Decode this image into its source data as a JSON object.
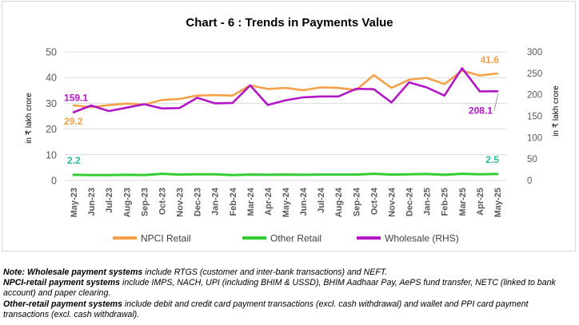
{
  "colors": {
    "npci_retail": "#f5a04a",
    "other_retail": "#33cc33",
    "wholesale": "#b316c6",
    "grid": "#d9d9d9",
    "axis_text": "#595959",
    "label_orange": "#f5a04a",
    "label_green": "#2eb8a0",
    "label_purple": "#b316c6"
  },
  "chart_data": {
    "type": "line",
    "title": "Chart - 6 : Trends in Payments Value",
    "ylabel_left": "in ₹ lakh crore",
    "ylabel_right": "in ₹ lakh crore",
    "ylim_left": [
      0,
      50
    ],
    "ylim_right": [
      0,
      300
    ],
    "yticks_left": [
      "0",
      "10",
      "20",
      "30",
      "40",
      "50"
    ],
    "yticks_right": [
      "0",
      "50",
      "100",
      "150",
      "200",
      "250",
      "300"
    ],
    "grid": true,
    "legend_position": "bottom",
    "categories": [
      "May-23",
      "Jun-23",
      "Jul-23",
      "Aug-23",
      "Sep-23",
      "Oct-23",
      "Nov-23",
      "Dec-23",
      "Jan-24",
      "Feb-24",
      "Mar-24",
      "Apr-24",
      "May-24",
      "Jun-24",
      "Jul-24",
      "Aug-24",
      "Sep-24",
      "Oct-24",
      "Nov-24",
      "Dec-24",
      "Jan-25",
      "Feb-25",
      "Mar-25",
      "Apr-25",
      "May-25"
    ],
    "series": [
      {
        "name": "NPCI Retail",
        "axis": "left",
        "values": [
          29.2,
          28.5,
          29.3,
          29.9,
          29.5,
          31.3,
          31.7,
          33.0,
          33.2,
          33.0,
          37.0,
          35.6,
          36.0,
          35.1,
          36.2,
          36.0,
          35.2,
          41.0,
          36.0,
          39.2,
          39.9,
          37.5,
          42.7,
          40.8,
          41.6
        ]
      },
      {
        "name": "Other Retail",
        "axis": "left",
        "values": [
          2.2,
          2.1,
          2.1,
          2.2,
          2.1,
          2.6,
          2.3,
          2.4,
          2.4,
          2.1,
          2.3,
          2.2,
          2.3,
          2.2,
          2.3,
          2.3,
          2.3,
          2.6,
          2.3,
          2.4,
          2.5,
          2.2,
          2.6,
          2.4,
          2.5
        ]
      },
      {
        "name": "Wholesale (RHS)",
        "axis": "right",
        "values": [
          159.1,
          175.0,
          162.0,
          170.0,
          178.0,
          168.0,
          169.0,
          193.0,
          180.0,
          181.0,
          222.0,
          176.0,
          187.0,
          194.0,
          196.0,
          196.0,
          214.0,
          213.0,
          182.0,
          229.0,
          217.0,
          198.0,
          262.0,
          208.0,
          208.1
        ]
      }
    ],
    "data_labels": {
      "npci_first": "29.2",
      "npci_last": "41.6",
      "other_first": "2.2",
      "other_last": "2.5",
      "wholesale_first": "159.1",
      "wholesale_last": "208.1"
    }
  },
  "notes": {
    "line1_bold": "Note: Wholesale payment systems",
    "line1_rest": " include RTGS (customer and inter-bank transactions) and NEFT.",
    "line2_bold": "NPCI-retail payment systems",
    "line2_rest": " include IMPS, NACH, UPI (including BHIM & USSD), BHIM Aadhaar Pay, AePS fund transfer, NETC (linked to bank account) and paper clearing.",
    "line3_bold": "Other-retail payment systems",
    "line3_rest": " include debit and credit card payment transactions (excl. cash withdrawal) and wallet and PPI card payment transactions (excl. cash withdrawal)."
  }
}
